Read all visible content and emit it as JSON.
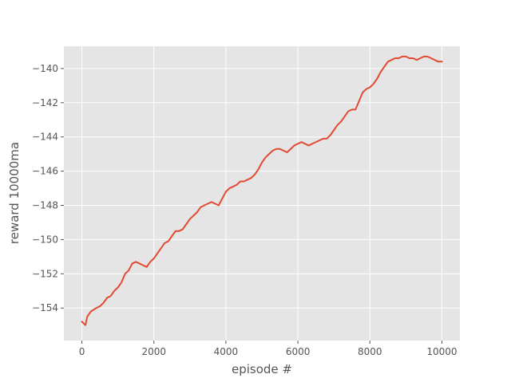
{
  "chart_data": {
    "type": "line",
    "title": "",
    "xlabel": "episode #",
    "ylabel": "reward 10000ma",
    "xlim": [
      -500,
      10500
    ],
    "ylim": [
      -155.9,
      -138.7
    ],
    "xticks": [
      0,
      2000,
      4000,
      6000,
      8000,
      10000
    ],
    "xtick_labels": [
      "0",
      "2000",
      "4000",
      "6000",
      "8000",
      "10000"
    ],
    "yticks": [
      -154,
      -152,
      -150,
      -148,
      -146,
      -144,
      -142,
      -140
    ],
    "ytick_labels": [
      "−154",
      "−152",
      "−150",
      "−148",
      "−146",
      "−144",
      "−142",
      "−140"
    ],
    "grid": true,
    "colors": {
      "background": "#e5e5e5",
      "grid": "#ffffff",
      "line": "#e24a33",
      "text": "#555555"
    },
    "series": [
      {
        "x": [
          0,
          100,
          150,
          250,
          400,
          500,
          600,
          700,
          800,
          900,
          1000,
          1100,
          1200,
          1300,
          1400,
          1500,
          1600,
          1700,
          1800,
          1900,
          2000,
          2100,
          2200,
          2300,
          2400,
          2500,
          2600,
          2700,
          2800,
          2900,
          3000,
          3100,
          3200,
          3300,
          3400,
          3500,
          3600,
          3700,
          3800,
          3900,
          4000,
          4100,
          4200,
          4300,
          4400,
          4500,
          4600,
          4700,
          4800,
          4900,
          5000,
          5100,
          5200,
          5300,
          5400,
          5500,
          5600,
          5700,
          5800,
          5900,
          6000,
          6100,
          6200,
          6300,
          6400,
          6500,
          6600,
          6700,
          6800,
          6900,
          7000,
          7100,
          7200,
          7300,
          7400,
          7500,
          7600,
          7700,
          7800,
          7900,
          8000,
          8100,
          8200,
          8300,
          8400,
          8500,
          8600,
          8700,
          8800,
          8900,
          9000,
          9100,
          9200,
          9300,
          9400,
          9500,
          9600,
          9700,
          9800,
          9900,
          10000
        ],
        "values": [
          -154.8,
          -155.0,
          -154.5,
          -154.2,
          -154.0,
          -153.9,
          -153.7,
          -153.4,
          -153.3,
          -153.0,
          -152.8,
          -152.5,
          -152.0,
          -151.8,
          -151.4,
          -151.3,
          -151.4,
          -151.5,
          -151.6,
          -151.3,
          -151.1,
          -150.8,
          -150.5,
          -150.2,
          -150.1,
          -149.8,
          -149.5,
          -149.5,
          -149.4,
          -149.1,
          -148.8,
          -148.6,
          -148.4,
          -148.1,
          -148.0,
          -147.9,
          -147.8,
          -147.9,
          -148.0,
          -147.6,
          -147.2,
          -147.0,
          -146.9,
          -146.8,
          -146.6,
          -146.6,
          -146.5,
          -146.4,
          -146.2,
          -145.9,
          -145.5,
          -145.2,
          -145.0,
          -144.8,
          -144.7,
          -144.7,
          -144.8,
          -144.9,
          -144.7,
          -144.5,
          -144.4,
          -144.3,
          -144.4,
          -144.5,
          -144.4,
          -144.3,
          -144.2,
          -144.1,
          -144.1,
          -143.9,
          -143.6,
          -143.3,
          -143.1,
          -142.8,
          -142.5,
          -142.4,
          -142.4,
          -141.9,
          -141.4,
          -141.2,
          -141.1,
          -140.9,
          -140.6,
          -140.2,
          -139.9,
          -139.6,
          -139.5,
          -139.4,
          -139.4,
          -139.3,
          -139.3,
          -139.4,
          -139.4,
          -139.5,
          -139.4,
          -139.3,
          -139.3,
          -139.4,
          -139.5,
          -139.6,
          -139.6
        ]
      }
    ]
  }
}
